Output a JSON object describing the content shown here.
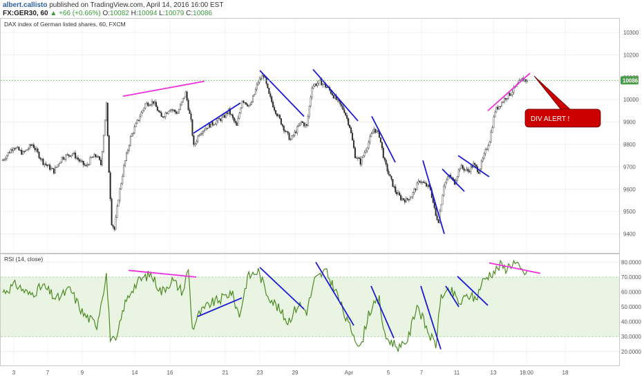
{
  "header": {
    "user": "albert.callisto",
    "published": "published on TradingView.com, April 14, 2016 16:00 EST",
    "symbol": "FX:GER30, 60",
    "arrow": "▲",
    "change": "+66 (+0.66%)",
    "open_label": "O:",
    "open": "10082",
    "high_label": "H:",
    "high": "10094",
    "low_label": "L:",
    "low": "10079",
    "close_label": "C:",
    "close": "10086",
    "last": "10086"
  },
  "colors": {
    "bull": "#f4f4f4",
    "bear": "#2a2a2a",
    "wick": "#333333",
    "trend_blue": "#1a1ad4",
    "trend_magenta": "#ee2ee0",
    "rsi_line": "#4b8a22",
    "rsi_band": "#eaf4e2",
    "alert": "#cc0000"
  },
  "chart_data": [
    {
      "type": "candlestick",
      "title": "DAX index of German listed shares, 60, FXCM",
      "ylim": [
        9340,
        10340
      ],
      "y_ticks": [
        "10300",
        "10200",
        "10100",
        "10000",
        "9900",
        "9800",
        "9700",
        "9600",
        "9500",
        "9400"
      ],
      "last_price": 10086,
      "x_ticks": [
        "3",
        "7",
        "9",
        "14",
        "16",
        "21",
        "23",
        "29",
        "Apr",
        "5",
        "7",
        "11",
        "13",
        "18:00",
        "18"
      ],
      "grid": true,
      "waypoints": [
        [
          0,
          9730
        ],
        [
          8,
          9790
        ],
        [
          15,
          9760
        ],
        [
          22,
          9800
        ],
        [
          30,
          9720
        ],
        [
          38,
          9680
        ],
        [
          44,
          9740
        ],
        [
          52,
          9760
        ],
        [
          58,
          9720
        ],
        [
          62,
          9700
        ],
        [
          66,
          9740
        ],
        [
          70,
          9750
        ],
        [
          73,
          9710
        ],
        [
          77,
          9980
        ],
        [
          79,
          9680
        ],
        [
          81,
          9450
        ],
        [
          83,
          9420
        ],
        [
          86,
          9560
        ],
        [
          90,
          9700
        ],
        [
          95,
          9830
        ],
        [
          100,
          9900
        ],
        [
          106,
          9980
        ],
        [
          112,
          9990
        ],
        [
          118,
          9920
        ],
        [
          124,
          9960
        ],
        [
          130,
          9940
        ],
        [
          136,
          10030
        ],
        [
          140,
          9900
        ],
        [
          142,
          9790
        ],
        [
          146,
          9850
        ],
        [
          152,
          9880
        ],
        [
          158,
          9900
        ],
        [
          164,
          9920
        ],
        [
          168,
          9950
        ],
        [
          174,
          9880
        ],
        [
          178,
          10000
        ],
        [
          184,
          9970
        ],
        [
          190,
          10080
        ],
        [
          194,
          10110
        ],
        [
          198,
          10020
        ],
        [
          202,
          9960
        ],
        [
          206,
          9910
        ],
        [
          210,
          9860
        ],
        [
          214,
          9820
        ],
        [
          218,
          9860
        ],
        [
          222,
          9900
        ],
        [
          226,
          9880
        ],
        [
          230,
          10060
        ],
        [
          236,
          10080
        ],
        [
          242,
          10050
        ],
        [
          248,
          10000
        ],
        [
          254,
          9950
        ],
        [
          258,
          9880
        ],
        [
          262,
          9750
        ],
        [
          266,
          9720
        ],
        [
          270,
          9780
        ],
        [
          276,
          9870
        ],
        [
          280,
          9840
        ],
        [
          284,
          9720
        ],
        [
          288,
          9650
        ],
        [
          292,
          9590
        ],
        [
          296,
          9560
        ],
        [
          300,
          9550
        ],
        [
          304,
          9570
        ],
        [
          310,
          9640
        ],
        [
          314,
          9620
        ],
        [
          318,
          9600
        ],
        [
          322,
          9480
        ],
        [
          324,
          9460
        ],
        [
          328,
          9620
        ],
        [
          332,
          9660
        ],
        [
          336,
          9630
        ],
        [
          340,
          9700
        ],
        [
          346,
          9680
        ],
        [
          350,
          9710
        ],
        [
          354,
          9680
        ],
        [
          358,
          9750
        ],
        [
          362,
          9820
        ],
        [
          366,
          9950
        ],
        [
          370,
          9980
        ],
        [
          374,
          10010
        ],
        [
          378,
          10030
        ],
        [
          382,
          10060
        ],
        [
          386,
          10090
        ],
        [
          390,
          10086
        ]
      ],
      "annotation": "DIV ALERT !",
      "trendlines": [
        {
          "color": "magenta",
          "from": [
            178,
            10015
          ],
          "to": [
            296,
            10082
          ]
        },
        {
          "color": "blue",
          "from": [
            280,
            9850
          ],
          "to": [
            348,
            9985
          ]
        },
        {
          "color": "blue",
          "from": [
            376,
            10130
          ],
          "to": [
            440,
            9925
          ]
        },
        {
          "color": "blue",
          "from": [
            453,
            10135
          ],
          "to": [
            518,
            9905
          ]
        },
        {
          "color": "blue",
          "from": [
            538,
            9925
          ],
          "to": [
            572,
            9720
          ]
        },
        {
          "color": "blue",
          "from": [
            612,
            9728
          ],
          "to": [
            643,
            9400
          ]
        },
        {
          "color": "blue",
          "from": [
            640,
            9690
          ],
          "to": [
            672,
            9590
          ]
        },
        {
          "color": "blue",
          "from": [
            663,
            9750
          ],
          "to": [
            708,
            9655
          ]
        },
        {
          "color": "magenta",
          "from": [
            706,
            9950
          ],
          "to": [
            767,
            10118
          ]
        }
      ]
    },
    {
      "type": "line",
      "title": "RSI (14, close)",
      "ylim": [
        12,
        83
      ],
      "y_ticks": [
        "80.0000",
        "70.0000",
        "60.0000",
        "50.0000",
        "40.0000",
        "30.0000",
        "20.0000"
      ],
      "band": [
        30,
        70
      ],
      "waypoints": [
        [
          0,
          60
        ],
        [
          10,
          65
        ],
        [
          20,
          58
        ],
        [
          30,
          64
        ],
        [
          40,
          55
        ],
        [
          50,
          62
        ],
        [
          60,
          45
        ],
        [
          70,
          38
        ],
        [
          77,
          72
        ],
        [
          80,
          30
        ],
        [
          84,
          25
        ],
        [
          90,
          50
        ],
        [
          96,
          62
        ],
        [
          102,
          68
        ],
        [
          110,
          72
        ],
        [
          118,
          60
        ],
        [
          126,
          68
        ],
        [
          134,
          60
        ],
        [
          138,
          76
        ],
        [
          141,
          35
        ],
        [
          146,
          45
        ],
        [
          154,
          52
        ],
        [
          162,
          55
        ],
        [
          170,
          60
        ],
        [
          176,
          44
        ],
        [
          182,
          70
        ],
        [
          190,
          74
        ],
        [
          196,
          60
        ],
        [
          204,
          50
        ],
        [
          212,
          40
        ],
        [
          220,
          52
        ],
        [
          226,
          47
        ],
        [
          232,
          68
        ],
        [
          240,
          74
        ],
        [
          248,
          60
        ],
        [
          256,
          40
        ],
        [
          262,
          30
        ],
        [
          266,
          22
        ],
        [
          272,
          46
        ],
        [
          280,
          55
        ],
        [
          284,
          30
        ],
        [
          290,
          26
        ],
        [
          296,
          22
        ],
        [
          302,
          30
        ],
        [
          308,
          52
        ],
        [
          314,
          38
        ],
        [
          318,
          30
        ],
        [
          322,
          24
        ],
        [
          326,
          58
        ],
        [
          334,
          60
        ],
        [
          340,
          52
        ],
        [
          346,
          58
        ],
        [
          352,
          55
        ],
        [
          356,
          66
        ],
        [
          362,
          72
        ],
        [
          366,
          74
        ],
        [
          370,
          78
        ],
        [
          374,
          76
        ],
        [
          380,
          80
        ],
        [
          386,
          74
        ],
        [
          390,
          72
        ]
      ],
      "trendlines": [
        {
          "color": "magenta",
          "from": [
            186,
            74.5
          ],
          "to": [
            284,
            70.0
          ]
        },
        {
          "color": "blue",
          "from": [
            286,
            43.5
          ],
          "to": [
            350,
            56.0
          ]
        },
        {
          "color": "blue",
          "from": [
            376,
            76.5
          ],
          "to": [
            440,
            48.5
          ]
        },
        {
          "color": "blue",
          "from": [
            457,
            80.0
          ],
          "to": [
            512,
            37.5
          ]
        },
        {
          "color": "blue",
          "from": [
            537,
            64.0
          ],
          "to": [
            570,
            29.0
          ]
        },
        {
          "color": "blue",
          "from": [
            609,
            64.0
          ],
          "to": [
            638,
            21.5
          ]
        },
        {
          "color": "blue",
          "from": [
            645,
            64.0
          ],
          "to": [
            664,
            50.0
          ]
        },
        {
          "color": "blue",
          "from": [
            662,
            70.5
          ],
          "to": [
            706,
            51.0
          ]
        },
        {
          "color": "magenta",
          "from": [
            708,
            79.5
          ],
          "to": [
            782,
            72.5
          ]
        }
      ]
    }
  ]
}
